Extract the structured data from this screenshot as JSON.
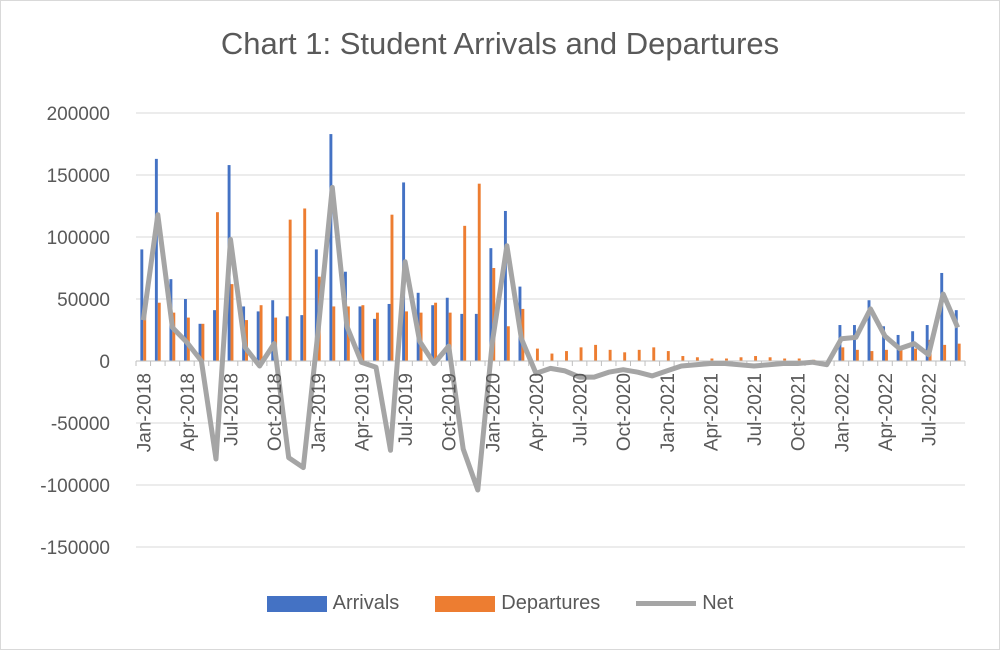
{
  "chart_data": {
    "type": "bar",
    "title": "Chart 1: Student Arrivals and Departures",
    "xlabel": "",
    "ylabel": "",
    "ylim": [
      -150000,
      200000
    ],
    "ytick_step": 50000,
    "grid": true,
    "legend_position": "bottom",
    "x_tick_labels": [
      "Jan-2018",
      "Apr-2018",
      "Jul-2018",
      "Oct-2018",
      "Jan-2019",
      "Apr-2019",
      "Jul-2019",
      "Oct-2019",
      "Jan-2020",
      "Apr-2020",
      "Jul-2020",
      "Oct-2020",
      "Jan-2021",
      "Apr-2021",
      "Jul-2021",
      "Oct-2021",
      "Jan-2022",
      "Apr-2022",
      "Jul-2022"
    ],
    "categories": [
      "Jan-2018",
      "Feb-2018",
      "Mar-2018",
      "Apr-2018",
      "May-2018",
      "Jun-2018",
      "Jul-2018",
      "Aug-2018",
      "Sep-2018",
      "Oct-2018",
      "Nov-2018",
      "Dec-2018",
      "Jan-2019",
      "Feb-2019",
      "Mar-2019",
      "Apr-2019",
      "May-2019",
      "Jun-2019",
      "Jul-2019",
      "Aug-2019",
      "Sep-2019",
      "Oct-2019",
      "Nov-2019",
      "Dec-2019",
      "Jan-2020",
      "Feb-2020",
      "Mar-2020",
      "Apr-2020",
      "May-2020",
      "Jun-2020",
      "Jul-2020",
      "Aug-2020",
      "Sep-2020",
      "Oct-2020",
      "Nov-2020",
      "Dec-2020",
      "Jan-2021",
      "Feb-2021",
      "Mar-2021",
      "Apr-2021",
      "May-2021",
      "Jun-2021",
      "Jul-2021",
      "Aug-2021",
      "Sep-2021",
      "Oct-2021",
      "Nov-2021",
      "Dec-2021",
      "Jan-2022",
      "Feb-2022",
      "Mar-2022",
      "Apr-2022",
      "May-2022",
      "Jun-2022",
      "Jul-2022",
      "Aug-2022",
      "Sep-2022"
    ],
    "series": [
      {
        "name": "Arrivals",
        "kind": "bar",
        "color": "#4472c4",
        "values": [
          90000,
          163000,
          66000,
          50000,
          30000,
          41000,
          158000,
          44000,
          40000,
          49000,
          36000,
          37000,
          90000,
          183000,
          72000,
          44000,
          34000,
          46000,
          144000,
          55000,
          45000,
          51000,
          38000,
          38000,
          91000,
          121000,
          60000,
          0,
          0,
          0,
          0,
          0,
          0,
          0,
          0,
          0,
          0,
          0,
          0,
          0,
          0,
          0,
          0,
          0,
          0,
          0,
          0,
          0,
          29000,
          29000,
          49000,
          28000,
          21000,
          24000,
          29000,
          71000,
          41000
        ]
      },
      {
        "name": "Departures",
        "kind": "bar",
        "color": "#ed7d31",
        "values": [
          38000,
          47000,
          39000,
          35000,
          30000,
          120000,
          62000,
          33000,
          45000,
          35000,
          114000,
          123000,
          68000,
          44000,
          44000,
          45000,
          39000,
          118000,
          40000,
          39000,
          47000,
          39000,
          109000,
          143000,
          75000,
          28000,
          42000,
          10000,
          6000,
          8000,
          11000,
          13000,
          9000,
          7000,
          9000,
          11000,
          8000,
          4000,
          3000,
          2000,
          2000,
          3000,
          4000,
          3000,
          2000,
          2000,
          1000,
          1000,
          11000,
          9000,
          8000,
          9000,
          11000,
          10000,
          17000,
          13000,
          14000
        ]
      },
      {
        "name": "Net",
        "kind": "line",
        "color": "#a5a5a5",
        "values": [
          33000,
          118000,
          27000,
          15000,
          0,
          -79000,
          98000,
          11000,
          -4000,
          14000,
          -78000,
          -86000,
          22000,
          140000,
          28000,
          -1000,
          -5000,
          -72000,
          80000,
          16000,
          -2000,
          12000,
          -71000,
          -104000,
          15000,
          93000,
          18000,
          -10000,
          -6000,
          -8000,
          -13000,
          -13000,
          -9000,
          -7000,
          -9000,
          -12000,
          -8000,
          -4000,
          -3000,
          -2000,
          -2000,
          -3000,
          -4000,
          -3000,
          -2000,
          -2000,
          -1000,
          -3000,
          18000,
          19000,
          42000,
          20000,
          10000,
          14000,
          5000,
          54000,
          27000
        ]
      }
    ]
  }
}
